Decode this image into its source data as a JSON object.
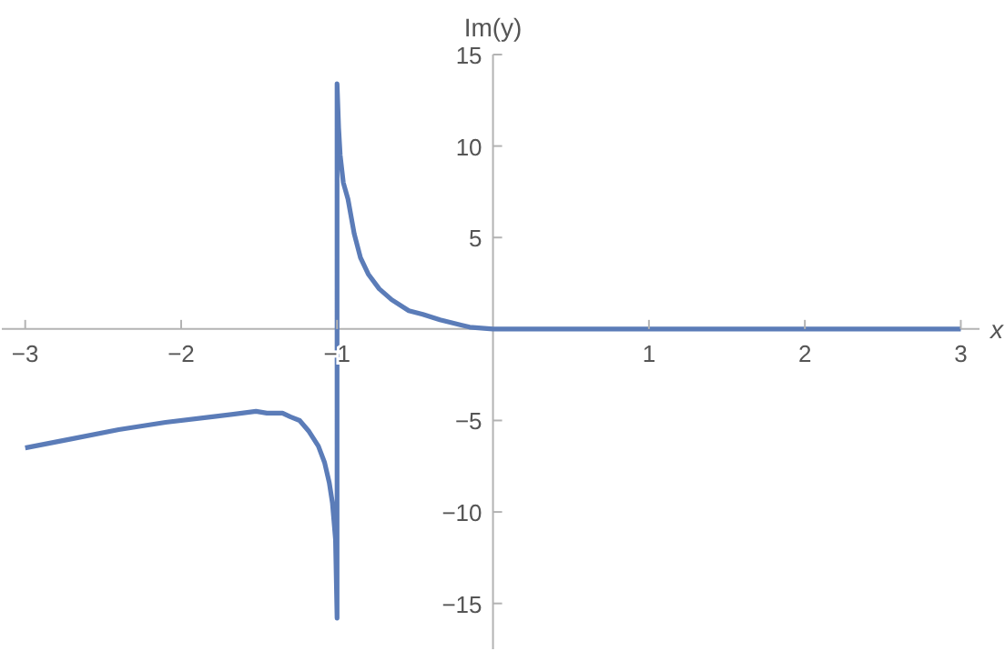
{
  "chart_data": {
    "type": "line",
    "xlabel": "x",
    "ylabel": "Im(y)",
    "xlim": [
      -3.15,
      3.12
    ],
    "ylim": [
      -17.5,
      15
    ],
    "xticks": [
      -3,
      -2,
      -1,
      1,
      2,
      3
    ],
    "yticks": [
      -15,
      -10,
      -5,
      5,
      10,
      15
    ],
    "marker": "none",
    "line_style": "solid",
    "series": [
      {
        "color": "#5b7cb8",
        "x": [
          -3,
          -2.7,
          -2.4,
          -2.1,
          -1.8,
          -1.52,
          -1.45,
          -1.35,
          -1.3,
          -1.24,
          -1.18,
          -1.12,
          -1.08,
          -1.05,
          -1.03,
          -1.02,
          -1.01,
          -1,
          -1,
          -0.99,
          -0.98,
          -0.96,
          -0.93,
          -0.89,
          -0.85,
          -0.8,
          -0.73,
          -0.65,
          -0.54,
          -0.45,
          -0.34,
          -0.15,
          0,
          1,
          2,
          3
        ],
        "values": [
          -6.5,
          -6.0,
          -5.5,
          -5.1,
          -4.8,
          -4.5,
          -4.6,
          -4.6,
          -4.8,
          -5.0,
          -5.6,
          -6.4,
          -7.3,
          -8.4,
          -9.5,
          -10.5,
          -11.5,
          -15.8,
          13.4,
          11,
          9.5,
          8,
          7.1,
          5.2,
          3.9,
          3.0,
          2.2,
          1.6,
          1.0,
          0.8,
          0.5,
          0.1,
          0,
          0,
          0,
          0
        ]
      }
    ]
  }
}
